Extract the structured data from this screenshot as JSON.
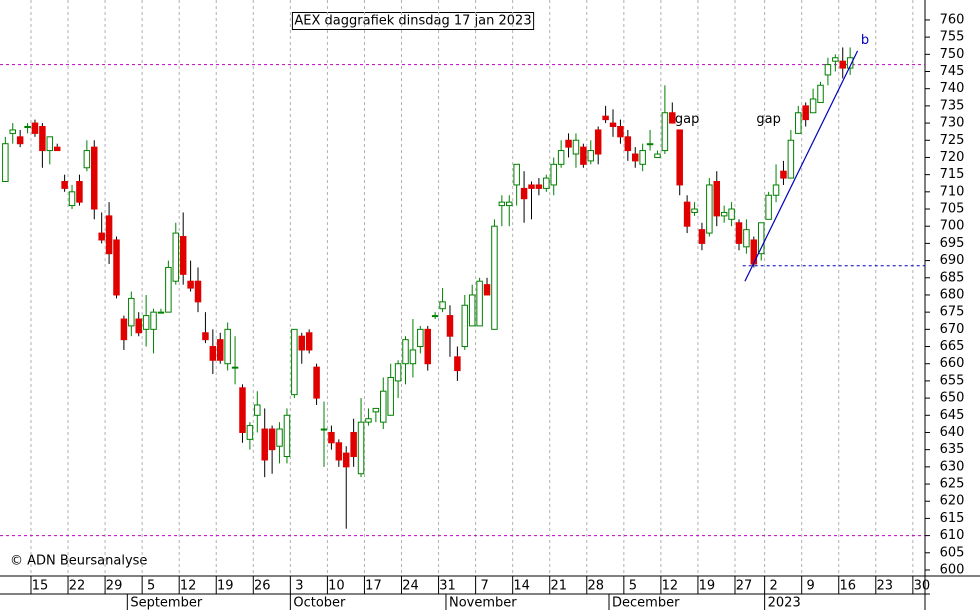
{
  "chart_data": {
    "type": "candlestick",
    "title": "AEX daggrafiek dinsdag 17 jan 2023",
    "x": [
      -4,
      -3,
      -2,
      -1,
      0,
      1,
      2,
      3,
      4,
      5,
      6,
      7,
      8,
      9,
      10,
      11,
      12,
      13,
      14,
      15,
      16,
      17,
      18,
      19,
      20,
      21,
      22,
      23,
      24,
      25,
      26,
      27,
      28,
      29,
      30,
      31,
      32,
      33,
      34,
      35,
      36,
      37,
      38,
      39,
      40,
      41,
      42,
      43,
      44,
      45,
      46,
      47,
      48,
      49,
      50,
      51,
      52,
      53,
      54,
      55,
      56,
      57,
      58,
      59,
      60,
      61,
      62,
      63,
      64,
      65,
      66,
      67,
      68,
      69,
      70,
      71,
      72,
      73,
      74,
      75,
      76,
      77,
      78,
      79,
      80,
      81,
      82,
      83,
      84,
      85,
      86,
      87,
      88,
      89,
      90,
      91,
      92,
      93,
      94,
      95,
      96,
      97,
      98,
      99,
      100,
      101,
      102,
      103,
      104,
      105,
      106,
      107,
      108,
      109,
      110
    ],
    "open": [
      713,
      727,
      726,
      729,
      730,
      729,
      722,
      723,
      713,
      706,
      713,
      717,
      723,
      698,
      703,
      696,
      673,
      671,
      673,
      670,
      670,
      675,
      675,
      684,
      697,
      684,
      684,
      669,
      665,
      667,
      660,
      659,
      653,
      638,
      645,
      641,
      641,
      636,
      633,
      651,
      668,
      669,
      659,
      641,
      640,
      637,
      634,
      640,
      628,
      643,
      646,
      643,
      645,
      655,
      660,
      660,
      665,
      670,
      674,
      676,
      674,
      662,
      665,
      671,
      671,
      683,
      670,
      706,
      706,
      712,
      711,
      712,
      712,
      711,
      712,
      718,
      725,
      721,
      723,
      719,
      728,
      732,
      730,
      729,
      726,
      721,
      718,
      724,
      720,
      722,
      733,
      728,
      707,
      704,
      699,
      698,
      713,
      703,
      702,
      701,
      694,
      696,
      692,
      702,
      709,
      716,
      714,
      727,
      735,
      733,
      736,
      744,
      748,
      748,
      746
    ],
    "high": [
      726,
      730,
      728,
      730,
      731,
      730,
      726,
      724,
      715,
      712,
      715,
      725,
      725,
      704,
      707,
      697,
      674,
      681,
      675,
      680,
      676,
      676,
      690,
      701,
      704,
      690,
      688,
      675,
      670,
      669,
      672,
      668,
      654,
      643,
      652,
      647,
      642,
      643,
      647,
      670,
      669,
      670,
      660,
      649,
      642,
      638,
      636,
      644,
      650,
      647,
      647,
      656,
      660,
      661,
      668,
      673,
      671,
      671,
      675,
      682,
      677,
      665,
      680,
      683,
      685,
      685,
      702,
      709,
      709,
      718,
      716,
      713,
      714,
      715,
      720,
      725,
      727,
      727,
      724,
      725,
      729,
      735,
      734,
      731,
      728,
      723,
      724,
      728,
      722,
      741,
      736,
      728,
      709,
      707,
      701,
      714,
      716,
      706,
      707,
      702,
      702,
      697,
      701,
      710,
      718,
      719,
      728,
      735,
      736,
      740,
      742,
      749,
      750,
      752,
      752
    ],
    "low": [
      713,
      724,
      723,
      727,
      726,
      717,
      718,
      722,
      710,
      705,
      706,
      716,
      702,
      695,
      689,
      679,
      664,
      668,
      668,
      665,
      663,
      675,
      675,
      683,
      683,
      681,
      675,
      666,
      657,
      660,
      658,
      654,
      637,
      635,
      640,
      627,
      628,
      631,
      631,
      650,
      660,
      663,
      648,
      630,
      635,
      630,
      612,
      630,
      627,
      642,
      643,
      641,
      646,
      650,
      654,
      656,
      663,
      658,
      673,
      675,
      662,
      655,
      664,
      671,
      671,
      680,
      670,
      700,
      700,
      706,
      701,
      702,
      709,
      710,
      709,
      717,
      720,
      717,
      717,
      718,
      718,
      730,
      726,
      724,
      719,
      717,
      716,
      722,
      720,
      721,
      730,
      709,
      698,
      703,
      693,
      697,
      700,
      701,
      700,
      693,
      692,
      688,
      690,
      702,
      707,
      712,
      714,
      727,
      729,
      733,
      736,
      741,
      745,
      743,
      744
    ],
    "close": [
      724,
      728,
      724,
      729,
      727,
      722,
      726,
      722,
      711,
      710,
      707,
      722,
      705,
      696,
      692,
      680,
      667,
      679,
      669,
      674,
      675,
      675,
      688,
      698,
      686,
      682,
      678,
      667,
      661,
      661,
      670,
      659,
      640,
      642,
      648,
      632,
      635,
      641,
      645,
      670,
      664,
      664,
      650,
      641,
      637,
      632,
      630,
      633,
      643,
      644,
      647,
      652,
      656,
      660,
      667,
      664,
      670,
      660,
      674,
      678,
      668,
      658,
      677,
      680,
      684,
      680,
      700,
      707,
      707,
      718,
      708,
      711,
      711,
      714,
      718,
      722,
      723,
      725,
      718,
      722,
      721,
      731,
      729,
      726,
      722,
      719,
      722,
      724,
      721,
      733,
      730,
      712,
      700,
      705,
      695,
      712,
      703,
      704,
      705,
      695,
      699,
      689,
      701,
      709,
      712,
      714,
      725,
      733,
      731,
      737,
      741,
      747,
      749,
      746,
      749
    ],
    "up_color": "#008000",
    "down_color": "#e00000",
    "xlim": [
      -4.72,
      120.1
    ],
    "xticks": [
      {
        "value": 0,
        "label": "15"
      },
      {
        "value": 5,
        "label": "22"
      },
      {
        "value": 10,
        "label": "29"
      },
      {
        "value": 15,
        "label": "5"
      },
      {
        "value": 20,
        "label": "12"
      },
      {
        "value": 25,
        "label": "19"
      },
      {
        "value": 30,
        "label": "26"
      },
      {
        "value": 35,
        "label": "3"
      },
      {
        "value": 40,
        "label": "10"
      },
      {
        "value": 45,
        "label": "17"
      },
      {
        "value": 50,
        "label": "24"
      },
      {
        "value": 55,
        "label": "31"
      },
      {
        "value": 60,
        "label": "7"
      },
      {
        "value": 65,
        "label": "14"
      },
      {
        "value": 70,
        "label": "21"
      },
      {
        "value": 75,
        "label": "28"
      },
      {
        "value": 80,
        "label": "5"
      },
      {
        "value": 85,
        "label": "12"
      },
      {
        "value": 90,
        "label": "19"
      },
      {
        "value": 95,
        "label": "27"
      },
      {
        "value": 99,
        "label": "2"
      },
      {
        "value": 104,
        "label": "9"
      },
      {
        "value": 109,
        "label": "16"
      },
      {
        "value": 114,
        "label": "23"
      },
      {
        "value": 119,
        "label": "30"
      }
    ],
    "months": [
      {
        "value": 13,
        "label": "September"
      },
      {
        "value": 35,
        "label": "October"
      },
      {
        "value": 56,
        "label": "November"
      },
      {
        "value": 78,
        "label": "December"
      },
      {
        "value": 99,
        "label": "2023"
      }
    ],
    "ylim": [
      598.25,
      765.8
    ],
    "yticks": [
      600,
      605,
      610,
      615,
      620,
      625,
      630,
      635,
      640,
      645,
      650,
      655,
      660,
      665,
      670,
      675,
      680,
      685,
      690,
      695,
      700,
      705,
      710,
      715,
      720,
      725,
      730,
      735,
      740,
      745,
      750,
      755,
      760
    ],
    "hlines": [
      {
        "value": 747,
        "color": "#c000c0"
      },
      {
        "value": 610,
        "color": "#c000c0"
      }
    ],
    "support": {
      "value": 688.5,
      "from": 95.5,
      "color": "#0000c0"
    },
    "trendline": {
      "x": [
        95.8,
        111
      ],
      "y": [
        684,
        751
      ],
      "color": "#0000c0"
    },
    "annotations": [
      {
        "text": "gap",
        "x": 88,
        "y": 731
      },
      {
        "text": "gap",
        "x": 99,
        "y": 731
      },
      {
        "text": "b",
        "x": 112,
        "y": 754
      }
    ],
    "copyright": "© ADN Beursanalyse"
  }
}
